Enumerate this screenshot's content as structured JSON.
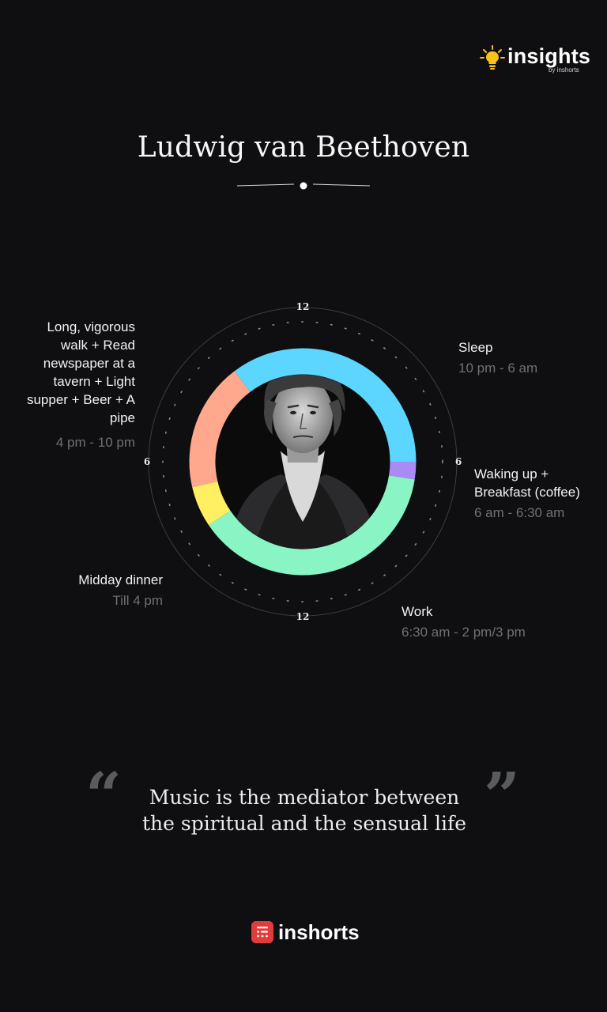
{
  "brand": {
    "name": "insights",
    "by": "by inshorts"
  },
  "title": "Ludwig van Beethoven",
  "clock": {
    "labels": {
      "top": "12",
      "right": "6",
      "bottom": "12",
      "left": "6"
    },
    "colors": {
      "sleep": "#5cd6ff",
      "waking": "#a98bf5",
      "work": "#8af5c4",
      "midday": "#ffef61",
      "evening": "#ffa88d"
    }
  },
  "activities": [
    {
      "id": "sleep",
      "name": "Sleep",
      "time": "10 pm - 6 am",
      "color": "#5cd6ff"
    },
    {
      "id": "waking",
      "name_lines": [
        "Waking up +",
        "Breakfast (coffee)"
      ],
      "time": "6 am - 6:30 am",
      "color": "#a98bf5"
    },
    {
      "id": "work",
      "name": "Work",
      "time": "6:30 am - 2 pm/3 pm",
      "color": "#8af5c4"
    },
    {
      "id": "midday",
      "name": "Midday dinner",
      "time": "Till 4 pm",
      "color": "#ffef61"
    },
    {
      "id": "evening",
      "name_lines": [
        "Long, vigorous",
        "walk + Read",
        "newspaper at a",
        "tavern + Light",
        "supper + Beer + A",
        "pipe"
      ],
      "time": "4 pm - 10 pm",
      "color": "#ffa88d"
    }
  ],
  "quote": {
    "open_mark": "“",
    "close_mark": "”",
    "lines": [
      "Music is the mediator between",
      "the spiritual and the sensual life"
    ]
  },
  "footer": {
    "name": "inshorts"
  }
}
